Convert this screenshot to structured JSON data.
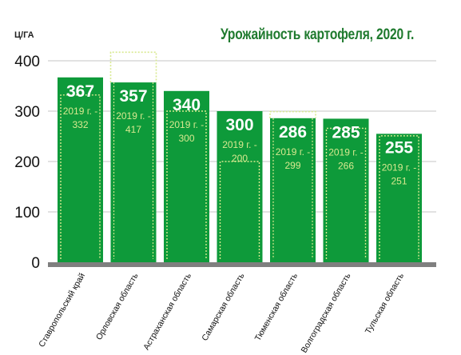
{
  "chart_data": {
    "type": "bar",
    "title": "Урожайность картофеля, 2020 г.",
    "ylabel": "Ц/ГА",
    "ylim": [
      0,
      400
    ],
    "yticks": [
      0,
      100,
      200,
      300,
      400
    ],
    "grid": true,
    "categories": [
      "Ставропольский край",
      "Орловская область",
      "Астраханская область",
      "Самарская область",
      "Тюменская область",
      "Волгоградская область",
      "Тульская область"
    ],
    "series": [
      {
        "values": [
          367,
          357,
          340,
          300,
          286,
          285,
          255
        ]
      },
      {
        "values": [
          332,
          417,
          300,
          200,
          299,
          266,
          251
        ]
      }
    ],
    "prev_labels": [
      "2019 г. -\n332",
      "2019 г. -\n417",
      "2019 г. -\n300",
      "2019 г. -\n200",
      "2019 г. -\n299",
      "2019 г. -\n266",
      "2019 г. -\n251"
    ],
    "colors": {
      "bar": "#0e9a3a",
      "prev": "#d8e98f",
      "grid": "#b3b3b3",
      "base": "#7f7f7f",
      "title": "#1f7a2e"
    }
  }
}
